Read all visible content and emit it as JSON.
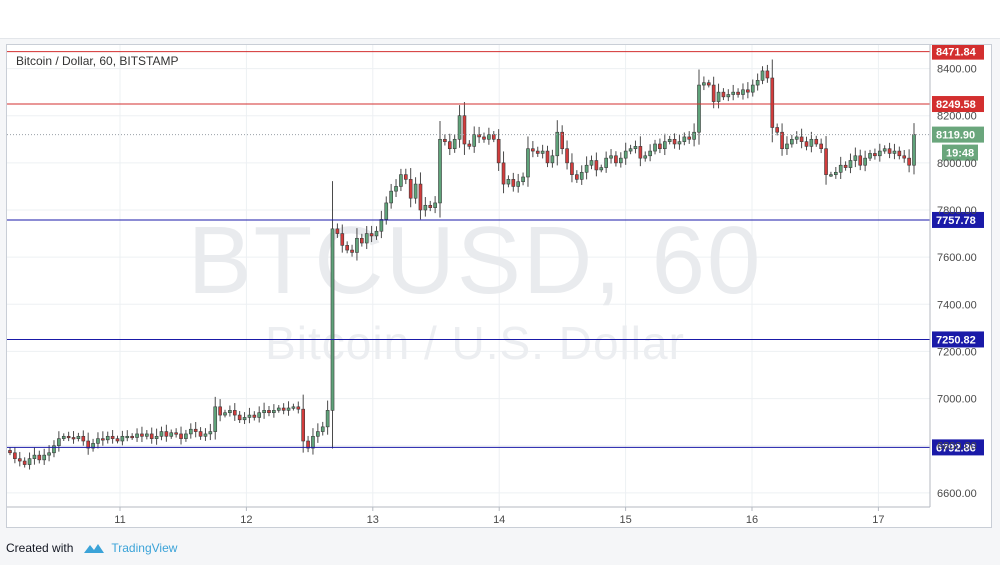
{
  "chart_data": {
    "type": "candlestick",
    "title": "Bitcoin / Dollar, 60, BITSTAMP",
    "watermark": {
      "symbol": "BTCUSD, 60",
      "name": "Bitcoin / U.S. Dollar"
    },
    "x_ticks": [
      "11",
      "12",
      "13",
      "14",
      "15",
      "16",
      "17"
    ],
    "y_ticks": [
      6600,
      6800,
      7000,
      7200,
      7400,
      7600,
      7800,
      8000,
      8200,
      8400
    ],
    "ylim": [
      6540,
      8500
    ],
    "grid": true,
    "horizontal_lines": [
      {
        "label": "8471.84",
        "value": 8471.84,
        "color": "#d32f2f"
      },
      {
        "label": "8249.58",
        "value": 8249.58,
        "color": "#d32f2f"
      },
      {
        "label": "7757.78",
        "value": 7757.78,
        "color": "#1a1aa8"
      },
      {
        "label": "7250.82",
        "value": 7250.82,
        "color": "#1a1aa8"
      },
      {
        "label": "6792.86",
        "value": 6792.86,
        "color": "#1a1aa8"
      }
    ],
    "last_price": {
      "label": "8119.90",
      "value": 8119.9,
      "countdown": "19:48",
      "color": "#6aa67c"
    },
    "colors": {
      "up": "#5fa37a",
      "down": "#d23c3c",
      "grid": "#edf0f3"
    },
    "closes": [
      6770,
      6745,
      6735,
      6720,
      6745,
      6760,
      6740,
      6760,
      6770,
      6800,
      6830,
      6840,
      6835,
      6830,
      6840,
      6820,
      6790,
      6810,
      6830,
      6825,
      6840,
      6830,
      6820,
      6840,
      6840,
      6835,
      6850,
      6840,
      6850,
      6830,
      6840,
      6860,
      6840,
      6855,
      6850,
      6830,
      6850,
      6870,
      6860,
      6840,
      6850,
      6860,
      6965,
      6930,
      6940,
      6950,
      6930,
      6910,
      6920,
      6930,
      6920,
      6940,
      6950,
      6940,
      6950,
      6960,
      6950,
      6960,
      6965,
      6955,
      6820,
      6790,
      6840,
      6860,
      6880,
      6950,
      7720,
      7700,
      7650,
      7630,
      7620,
      7680,
      7660,
      7700,
      7690,
      7710,
      7760,
      7830,
      7880,
      7900,
      7950,
      7930,
      7850,
      7910,
      7800,
      7820,
      7810,
      7830,
      8100,
      8090,
      8060,
      8100,
      8200,
      8080,
      8070,
      8120,
      8110,
      8100,
      8120,
      8100,
      8000,
      7910,
      7930,
      7900,
      7920,
      7940,
      8060,
      8050,
      8040,
      8050,
      8000,
      8030,
      8130,
      8060,
      8000,
      7950,
      7930,
      7960,
      7990,
      8010,
      7970,
      7980,
      8020,
      8030,
      8000,
      8020,
      8050,
      8060,
      8070,
      8020,
      8030,
      8050,
      8080,
      8060,
      8090,
      8100,
      8080,
      8090,
      8110,
      8100,
      8130,
      8330,
      8340,
      8330,
      8260,
      8300,
      8280,
      8290,
      8300,
      8290,
      8310,
      8300,
      8330,
      8350,
      8390,
      8360,
      8150,
      8130,
      8060,
      8080,
      8100,
      8110,
      8090,
      8070,
      8100,
      8080,
      8060,
      7950,
      7950,
      7960,
      7990,
      7980,
      8010,
      8030,
      7990,
      8020,
      8040,
      8030,
      8050,
      8060,
      8040,
      8050,
      8030,
      8020,
      7990,
      8119.9
    ]
  },
  "footer": {
    "created_with": "Created with",
    "brand": "TradingView"
  }
}
